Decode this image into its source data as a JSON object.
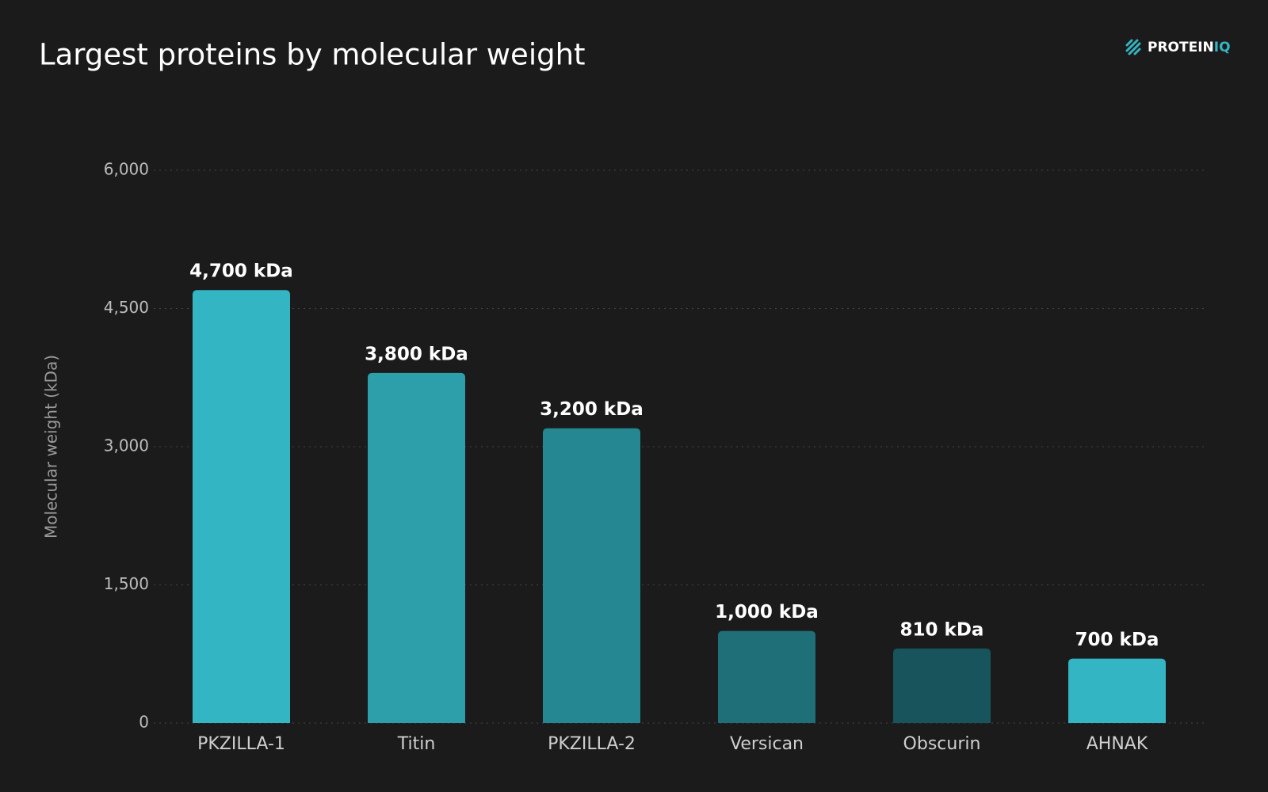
{
  "chart_data": {
    "type": "bar",
    "title": "Largest proteins by molecular weight",
    "brand": {
      "text": "PROTEIN",
      "accent": "IQ"
    },
    "y_label": "Molecular weight (kDa)",
    "categories": [
      "PKZILLA-1",
      "Titin",
      "PKZILLA-2",
      "Versican",
      "Obscurin",
      "AHNAK"
    ],
    "values": [
      4700,
      3800,
      3200,
      1000,
      810,
      700
    ],
    "value_labels": [
      "4,700 kDa",
      "3,800 kDa",
      "3,200 kDa",
      "1,000 kDa",
      "810 kDa",
      "700 kDa"
    ],
    "colors": [
      "#33b5c4",
      "#2c9fab",
      "#248791",
      "#1e6f78",
      "#17545c",
      "#33b5c4"
    ],
    "ylim": [
      0,
      6000
    ],
    "yticks": [
      0,
      {
        "value": 1500,
        "label": "1,500"
      },
      {
        "value": 3000,
        "label": "3,000"
      },
      {
        "value": 4500,
        "label": "4,500"
      },
      {
        "value": 6000,
        "label": "6,000"
      }
    ],
    "grid": true
  }
}
